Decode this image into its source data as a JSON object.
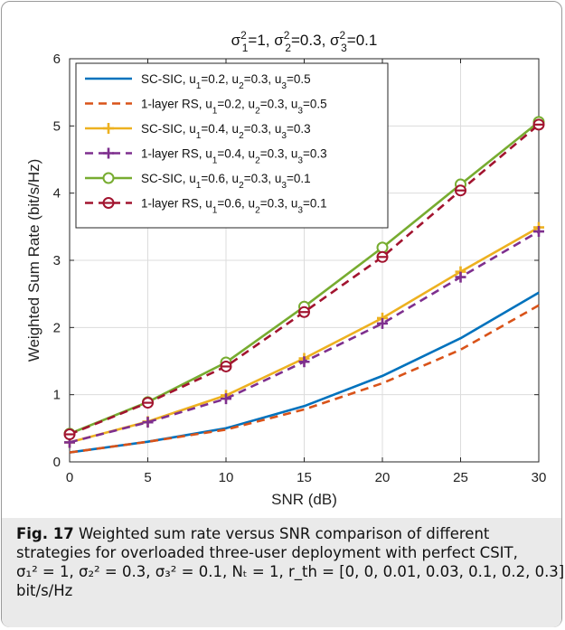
{
  "chart_data": {
    "type": "line",
    "title": "σ₁²=1, σ₂²=0.3, σ₃²=0.1",
    "xlabel": "SNR (dB)",
    "ylabel": "Weighted Sum Rate (bit/s/Hz)",
    "xlim": [
      0,
      30
    ],
    "ylim": [
      0,
      6
    ],
    "xticks": [
      "0",
      "5",
      "10",
      "15",
      "20",
      "25",
      "30"
    ],
    "yticks": [
      "0",
      "1",
      "2",
      "3",
      "4",
      "5",
      "6"
    ],
    "grid": true,
    "legend_position": "top-left",
    "x": [
      0,
      5,
      10,
      15,
      20,
      25,
      30
    ],
    "series": [
      {
        "name": "SC-SIC, u1=0.2, u2=0.3, u3=0.5",
        "color": "#0072bd",
        "dash": "solid",
        "marker": "none",
        "values": [
          0.14,
          0.3,
          0.5,
          0.83,
          1.28,
          1.84,
          2.52
        ]
      },
      {
        "name": "1-layer RS, u1=0.2, u2=0.3, u3=0.5",
        "color": "#d95319",
        "dash": "dashed",
        "marker": "none",
        "values": [
          0.14,
          0.3,
          0.48,
          0.78,
          1.17,
          1.67,
          2.33
        ]
      },
      {
        "name": "SC-SIC, u1=0.4, u2=0.3, u3=0.3",
        "color": "#edb120",
        "dash": "solid",
        "marker": "plus",
        "values": [
          0.29,
          0.6,
          0.99,
          1.54,
          2.14,
          2.83,
          3.49
        ]
      },
      {
        "name": "1-layer RS, u1=0.4, u2=0.3, u3=0.3",
        "color": "#7e2f8e",
        "dash": "dashed",
        "marker": "plus",
        "values": [
          0.29,
          0.59,
          0.94,
          1.49,
          2.06,
          2.75,
          3.43
        ]
      },
      {
        "name": "SC-SIC, u1=0.6, u2=0.3, u3=0.1",
        "color": "#77ac30",
        "dash": "solid",
        "marker": "circle",
        "values": [
          0.42,
          0.89,
          1.48,
          2.31,
          3.19,
          4.13,
          5.06
        ]
      },
      {
        "name": "1-layer RS, u1=0.6, u2=0.3, u3=0.1",
        "color": "#a2142f",
        "dash": "dashed",
        "marker": "circle-bar",
        "values": [
          0.41,
          0.88,
          1.42,
          2.23,
          3.05,
          4.04,
          5.02
        ]
      }
    ]
  },
  "legend_labels": [
    {
      "prefix": "SC-SIC",
      "u1": "0.2",
      "u2": "0.3",
      "u3": "0.5"
    },
    {
      "prefix": "1-layer RS",
      "u1": "0.2",
      "u2": "0.3",
      "u3": "0.5"
    },
    {
      "prefix": "SC-SIC",
      "u1": "0.4",
      "u2": "0.3",
      "u3": "0.3"
    },
    {
      "prefix": "1-layer RS",
      "u1": "0.4",
      "u2": "0.3",
      "u3": "0.3"
    },
    {
      "prefix": "SC-SIC",
      "u1": "0.6",
      "u2": "0.3",
      "u3": "0.1"
    },
    {
      "prefix": "1-layer RS",
      "u1": "0.6",
      "u2": "0.3",
      "u3": "0.1"
    }
  ],
  "caption": {
    "label": "Fig. 17",
    "line1": "Weighted sum rate versus SNR comparison of different",
    "line2": "strategies for overloaded three-user deployment with perfect CSIT,",
    "line3": "σ₁² = 1, σ₂² = 0.3, σ₃² = 0.1, Nₜ = 1, r_th = [0, 0, 0.01, 0.03, 0.1, 0.2, 0.3]",
    "line4": "bit/s/Hz"
  }
}
